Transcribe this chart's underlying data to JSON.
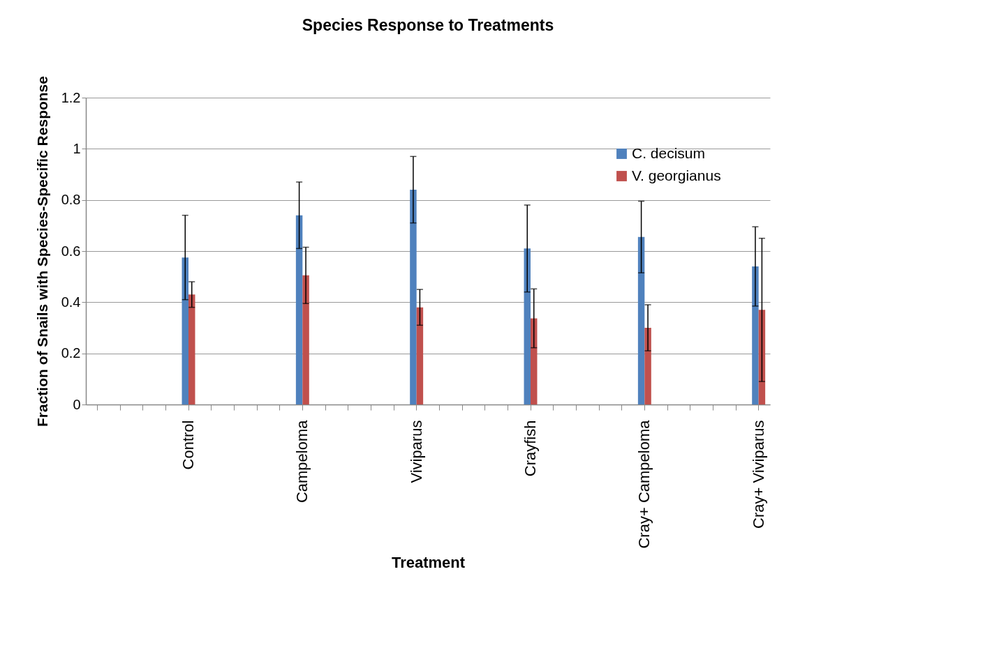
{
  "chart_data": {
    "type": "bar",
    "title": "Species Response to Treatments",
    "xlabel": "Treatment",
    "ylabel": "Fraction of Snails with Species-Specific Response",
    "categories": [
      null,
      null,
      null,
      null,
      "Control",
      null,
      null,
      null,
      null,
      "Campeloma",
      null,
      null,
      null,
      null,
      "Viviparus",
      null,
      null,
      null,
      null,
      "Crayfish",
      null,
      null,
      null,
      null,
      "Cray+ Campeloma",
      null,
      null,
      null,
      null,
      "Cray+ Viviparus"
    ],
    "series": [
      {
        "name": "C. decisum",
        "color": "#4f81bd",
        "values": [
          null,
          null,
          null,
          null,
          0.575,
          null,
          null,
          null,
          null,
          0.74,
          null,
          null,
          null,
          null,
          0.84,
          null,
          null,
          null,
          null,
          0.61,
          null,
          null,
          null,
          null,
          0.655,
          null,
          null,
          null,
          null,
          0.54
        ],
        "errors": [
          null,
          null,
          null,
          null,
          0.165,
          null,
          null,
          null,
          null,
          0.13,
          null,
          null,
          null,
          null,
          0.13,
          null,
          null,
          null,
          null,
          0.17,
          null,
          null,
          null,
          null,
          0.14,
          null,
          null,
          null,
          null,
          0.155
        ]
      },
      {
        "name": "V. georgianus",
        "color": "#c0504d",
        "values": [
          null,
          null,
          null,
          null,
          0.43,
          null,
          null,
          null,
          null,
          0.505,
          null,
          null,
          null,
          null,
          0.38,
          null,
          null,
          null,
          null,
          0.337,
          null,
          null,
          null,
          null,
          0.3,
          null,
          null,
          null,
          null,
          0.37
        ],
        "errors": [
          null,
          null,
          null,
          null,
          0.05,
          null,
          null,
          null,
          null,
          0.11,
          null,
          null,
          null,
          null,
          0.07,
          null,
          null,
          null,
          null,
          0.115,
          null,
          null,
          null,
          null,
          0.09,
          null,
          null,
          null,
          null,
          0.28
        ]
      }
    ],
    "ylim": [
      0,
      1.2
    ],
    "yticks": [
      0,
      0.2,
      0.4,
      0.6,
      0.8,
      1,
      1.2
    ],
    "grid": "y",
    "legend": "top right"
  }
}
